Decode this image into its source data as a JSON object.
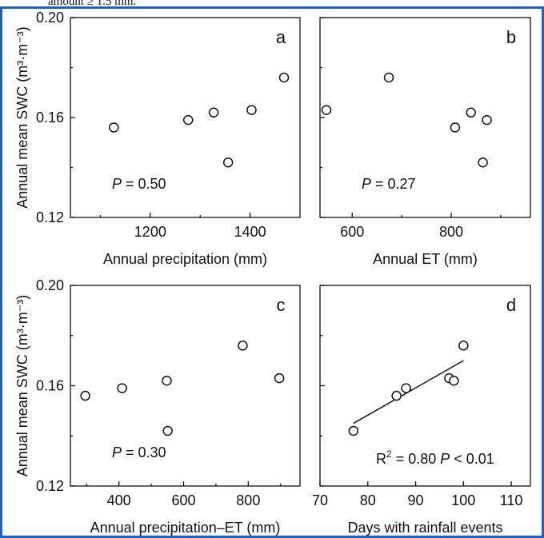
{
  "caption": "amount ≥ 1.5 mm.",
  "chart_data": [
    {
      "type": "scatter",
      "panel": "a",
      "xlabel": "Annual precipitation (mm)",
      "ylabel": "Annual mean SWC (m³·m⁻³)",
      "x": [
        1127,
        1276,
        1327,
        1356,
        1403,
        1468
      ],
      "values": [
        0.156,
        0.159,
        0.162,
        0.142,
        0.163,
        0.176
      ],
      "xlim": [
        1040,
        1500
      ],
      "xticks": [
        1200,
        1400
      ],
      "xminor": [
        1100,
        1300
      ],
      "ylim": [
        0.12,
        0.2
      ],
      "yticks": [
        {
          "value": 0.12,
          "label": "0.12"
        },
        {
          "value": 0.16,
          "label": "0.16"
        },
        {
          "value": 0.2,
          "label": "0.20"
        }
      ],
      "yminor": [
        0.14,
        0.18
      ],
      "ytick_labels": true,
      "stat": {
        "label": "P",
        "value": " = 0.50"
      }
    },
    {
      "type": "scatter",
      "panel": "b",
      "xlabel": "Annual ET (mm)",
      "x": [
        548,
        674,
        808,
        840,
        872,
        864
      ],
      "values": [
        0.163,
        0.176,
        0.156,
        0.162,
        0.159,
        0.142
      ],
      "xlim": [
        535,
        960
      ],
      "xticks": [
        600,
        800
      ],
      "xminor": [
        700,
        900
      ],
      "ylim": [
        0.12,
        0.2
      ],
      "yticks": [
        0.12,
        0.16,
        0.2
      ],
      "yminor": [
        0.14,
        0.18
      ],
      "ytick_labels": false,
      "stat": {
        "label": "P",
        "value": " = 0.27"
      }
    },
    {
      "type": "scatter",
      "panel": "c",
      "xlabel": "Annual precipitation–ET (mm)",
      "ylabel": "Annual mean SWC (m³·m⁻³)",
      "x": [
        296,
        410,
        548,
        551,
        783,
        896
      ],
      "values": [
        0.156,
        0.159,
        0.162,
        0.142,
        0.176,
        0.163
      ],
      "xlim": [
        250,
        960
      ],
      "xticks": [
        400,
        600,
        800
      ],
      "xminor": [
        300,
        500,
        700,
        900
      ],
      "ylim": [
        0.12,
        0.2
      ],
      "yticks": [
        {
          "value": 0.12,
          "label": "0.12"
        },
        {
          "value": 0.16,
          "label": "0.16"
        },
        {
          "value": 0.2,
          "label": "0.20"
        }
      ],
      "yminor": [
        0.14,
        0.18
      ],
      "ytick_labels": true,
      "stat": {
        "label": "P",
        "value": " = 0.30"
      }
    },
    {
      "type": "scatter",
      "panel": "d",
      "xlabel": "Days with rainfall events",
      "x": [
        77,
        86,
        88,
        97,
        98,
        100
      ],
      "values": [
        0.142,
        0.156,
        0.159,
        0.163,
        0.162,
        0.176
      ],
      "xlim": [
        70,
        114
      ],
      "xticks": [
        70,
        80,
        90,
        100,
        110
      ],
      "ylim": [
        0.12,
        0.2
      ],
      "yticks": [
        0.12,
        0.16,
        0.2
      ],
      "yminor": [
        0.14,
        0.18
      ],
      "ytick_labels": false,
      "fit": {
        "x": [
          77,
          100
        ],
        "y": [
          0.145,
          0.17
        ]
      },
      "stat2": {
        "r": "R",
        "sup": "2",
        "rvalue": " = 0.80  ",
        "p": "P",
        "pvalue": " < 0.01"
      }
    }
  ]
}
